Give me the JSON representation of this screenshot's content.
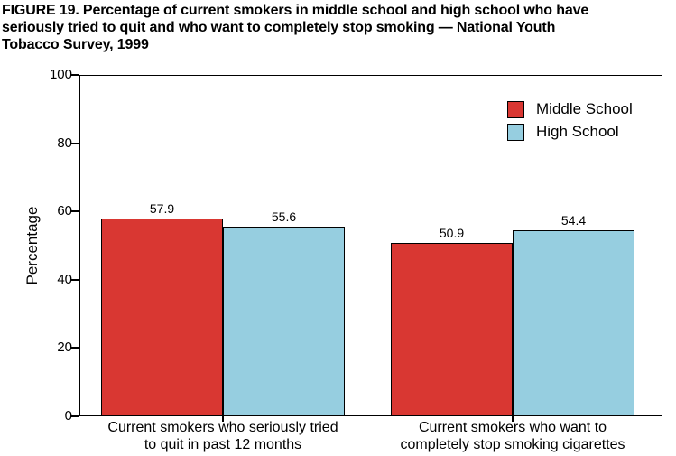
{
  "figure": {
    "title": "FIGURE 19. Percentage of current smokers in middle school and high school who have\nseriously tried to quit and who want to completely stop smoking — National Youth\nTobacco Survey, 1999"
  },
  "chart_data": {
    "type": "bar",
    "title": "FIGURE 19. Percentage of current smokers in middle school and high school who have seriously tried to quit and who want to completely stop smoking — National Youth Tobacco Survey, 1999",
    "categories": [
      "Current smokers who seriously tried\nto quit in past 12 months",
      "Current smokers who want to\ncompletely stop smoking cigarettes"
    ],
    "series": [
      {
        "name": "Middle School",
        "color": "#d93732",
        "values": [
          57.9,
          50.9
        ]
      },
      {
        "name": "High School",
        "color": "#96cee0",
        "values": [
          55.6,
          54.4
        ]
      }
    ],
    "xlabel": "",
    "ylabel": "Percentage",
    "ylim": [
      0,
      100
    ],
    "yticks": [
      0,
      20,
      40,
      60,
      80,
      100
    ],
    "grid": false,
    "legend_position": "top-right",
    "value_labels": true,
    "bar_border_color": "#000000",
    "axis_color": "#000000"
  }
}
